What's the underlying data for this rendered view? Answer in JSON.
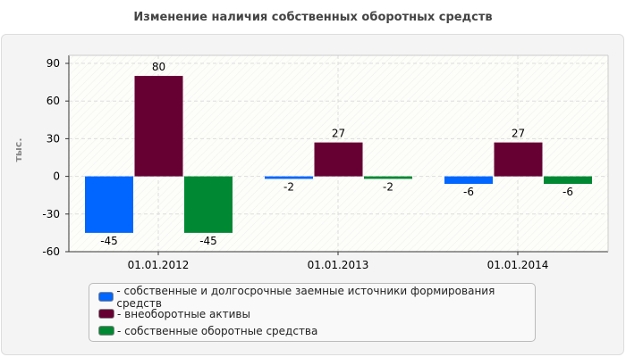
{
  "chart_data": {
    "type": "bar",
    "title": "Изменение наличия собственных оборотных средств",
    "ylabel": "тыс.",
    "xlabel": "",
    "categories": [
      "01.01.2012",
      "01.01.2013",
      "01.01.2014"
    ],
    "series": [
      {
        "name": "собственные и долгосрочные заемные источники формирования средств",
        "color": "#0066ff",
        "values": [
          -45,
          -2,
          -6
        ]
      },
      {
        "name": "внеоборотные активы",
        "color": "#660033",
        "values": [
          80,
          27,
          27
        ]
      },
      {
        "name": "собственные оборотные средства",
        "color": "#008833",
        "values": [
          -45,
          -2,
          -6
        ]
      }
    ],
    "ylim": [
      -60,
      90
    ],
    "yticks": [
      -60,
      -30,
      0,
      30,
      60,
      90
    ],
    "grid": true,
    "legend": "bottom"
  }
}
